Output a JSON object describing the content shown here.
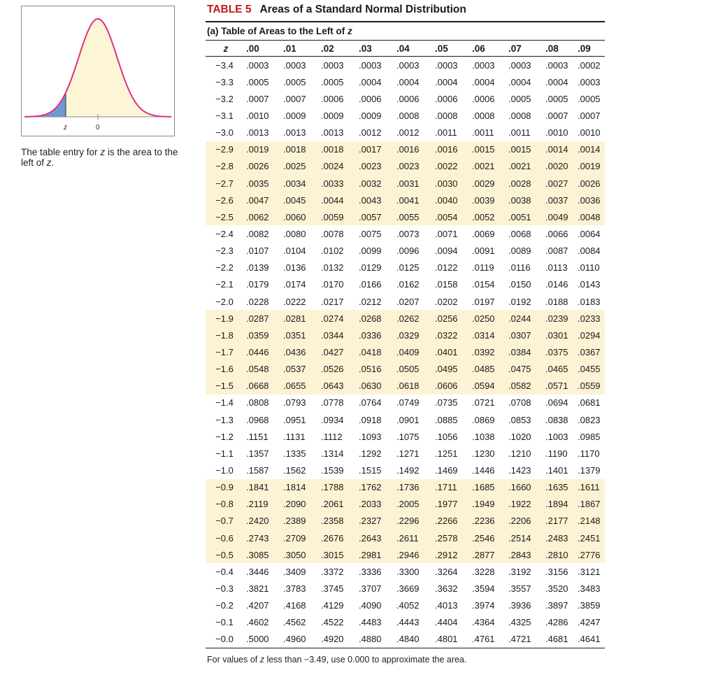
{
  "figure": {
    "z_label": "z",
    "zero_label": "0",
    "fill_color": "#6f9bd3",
    "curve_color": "#e0307a",
    "area_color": "#fcf6d6"
  },
  "caption": {
    "prefix": "The table entry for ",
    "z1": "z",
    "mid": " is the area to the left of ",
    "z2": "z",
    "suffix": "."
  },
  "title": {
    "number": "TABLE 5",
    "name": "Areas of a Standard Normal Distribution"
  },
  "subtitle": {
    "text": "(a) Table of Areas to the Left of ",
    "z": "z"
  },
  "table": {
    "z_header": "z",
    "columns": [
      ".00",
      ".01",
      ".02",
      ".03",
      ".04",
      ".05",
      ".06",
      ".07",
      ".08",
      ".09"
    ],
    "rows": [
      {
        "z": "−3.4",
        "v": [
          ".0003",
          ".0003",
          ".0003",
          ".0003",
          ".0003",
          ".0003",
          ".0003",
          ".0003",
          ".0003",
          ".0002"
        ]
      },
      {
        "z": "−3.3",
        "v": [
          ".0005",
          ".0005",
          ".0005",
          ".0004",
          ".0004",
          ".0004",
          ".0004",
          ".0004",
          ".0004",
          ".0003"
        ]
      },
      {
        "z": "−3.2",
        "v": [
          ".0007",
          ".0007",
          ".0006",
          ".0006",
          ".0006",
          ".0006",
          ".0006",
          ".0005",
          ".0005",
          ".0005"
        ]
      },
      {
        "z": "−3.1",
        "v": [
          ".0010",
          ".0009",
          ".0009",
          ".0009",
          ".0008",
          ".0008",
          ".0008",
          ".0008",
          ".0007",
          ".0007"
        ]
      },
      {
        "z": "−3.0",
        "v": [
          ".0013",
          ".0013",
          ".0013",
          ".0012",
          ".0012",
          ".0011",
          ".0011",
          ".0011",
          ".0010",
          ".0010"
        ]
      },
      {
        "z": "−2.9",
        "v": [
          ".0019",
          ".0018",
          ".0018",
          ".0017",
          ".0016",
          ".0016",
          ".0015",
          ".0015",
          ".0014",
          ".0014"
        ]
      },
      {
        "z": "−2.8",
        "v": [
          ".0026",
          ".0025",
          ".0024",
          ".0023",
          ".0023",
          ".0022",
          ".0021",
          ".0021",
          ".0020",
          ".0019"
        ]
      },
      {
        "z": "−2.7",
        "v": [
          ".0035",
          ".0034",
          ".0033",
          ".0032",
          ".0031",
          ".0030",
          ".0029",
          ".0028",
          ".0027",
          ".0026"
        ]
      },
      {
        "z": "−2.6",
        "v": [
          ".0047",
          ".0045",
          ".0044",
          ".0043",
          ".0041",
          ".0040",
          ".0039",
          ".0038",
          ".0037",
          ".0036"
        ]
      },
      {
        "z": "−2.5",
        "v": [
          ".0062",
          ".0060",
          ".0059",
          ".0057",
          ".0055",
          ".0054",
          ".0052",
          ".0051",
          ".0049",
          ".0048"
        ]
      },
      {
        "z": "−2.4",
        "v": [
          ".0082",
          ".0080",
          ".0078",
          ".0075",
          ".0073",
          ".0071",
          ".0069",
          ".0068",
          ".0066",
          ".0064"
        ]
      },
      {
        "z": "−2.3",
        "v": [
          ".0107",
          ".0104",
          ".0102",
          ".0099",
          ".0096",
          ".0094",
          ".0091",
          ".0089",
          ".0087",
          ".0084"
        ]
      },
      {
        "z": "−2.2",
        "v": [
          ".0139",
          ".0136",
          ".0132",
          ".0129",
          ".0125",
          ".0122",
          ".0119",
          ".0116",
          ".0113",
          ".0110"
        ]
      },
      {
        "z": "−2.1",
        "v": [
          ".0179",
          ".0174",
          ".0170",
          ".0166",
          ".0162",
          ".0158",
          ".0154",
          ".0150",
          ".0146",
          ".0143"
        ]
      },
      {
        "z": "−2.0",
        "v": [
          ".0228",
          ".0222",
          ".0217",
          ".0212",
          ".0207",
          ".0202",
          ".0197",
          ".0192",
          ".0188",
          ".0183"
        ]
      },
      {
        "z": "−1.9",
        "v": [
          ".0287",
          ".0281",
          ".0274",
          ".0268",
          ".0262",
          ".0256",
          ".0250",
          ".0244",
          ".0239",
          ".0233"
        ]
      },
      {
        "z": "−1.8",
        "v": [
          ".0359",
          ".0351",
          ".0344",
          ".0336",
          ".0329",
          ".0322",
          ".0314",
          ".0307",
          ".0301",
          ".0294"
        ]
      },
      {
        "z": "−1.7",
        "v": [
          ".0446",
          ".0436",
          ".0427",
          ".0418",
          ".0409",
          ".0401",
          ".0392",
          ".0384",
          ".0375",
          ".0367"
        ]
      },
      {
        "z": "−1.6",
        "v": [
          ".0548",
          ".0537",
          ".0526",
          ".0516",
          ".0505",
          ".0495",
          ".0485",
          ".0475",
          ".0465",
          ".0455"
        ]
      },
      {
        "z": "−1.5",
        "v": [
          ".0668",
          ".0655",
          ".0643",
          ".0630",
          ".0618",
          ".0606",
          ".0594",
          ".0582",
          ".0571",
          ".0559"
        ]
      },
      {
        "z": "−1.4",
        "v": [
          ".0808",
          ".0793",
          ".0778",
          ".0764",
          ".0749",
          ".0735",
          ".0721",
          ".0708",
          ".0694",
          ".0681"
        ]
      },
      {
        "z": "−1.3",
        "v": [
          ".0968",
          ".0951",
          ".0934",
          ".0918",
          ".0901",
          ".0885",
          ".0869",
          ".0853",
          ".0838",
          ".0823"
        ]
      },
      {
        "z": "−1.2",
        "v": [
          ".1151",
          ".1131",
          ".1112",
          ".1093",
          ".1075",
          ".1056",
          ".1038",
          ".1020",
          ".1003",
          ".0985"
        ]
      },
      {
        "z": "−1.1",
        "v": [
          ".1357",
          ".1335",
          ".1314",
          ".1292",
          ".1271",
          ".1251",
          ".1230",
          ".1210",
          ".1190",
          ".1170"
        ]
      },
      {
        "z": "−1.0",
        "v": [
          ".1587",
          ".1562",
          ".1539",
          ".1515",
          ".1492",
          ".1469",
          ".1446",
          ".1423",
          ".1401",
          ".1379"
        ]
      },
      {
        "z": "−0.9",
        "v": [
          ".1841",
          ".1814",
          ".1788",
          ".1762",
          ".1736",
          ".1711",
          ".1685",
          ".1660",
          ".1635",
          ".1611"
        ]
      },
      {
        "z": "−0.8",
        "v": [
          ".2119",
          ".2090",
          ".2061",
          ".2033",
          ".2005",
          ".1977",
          ".1949",
          ".1922",
          ".1894",
          ".1867"
        ]
      },
      {
        "z": "−0.7",
        "v": [
          ".2420",
          ".2389",
          ".2358",
          ".2327",
          ".2296",
          ".2266",
          ".2236",
          ".2206",
          ".2177",
          ".2148"
        ]
      },
      {
        "z": "−0.6",
        "v": [
          ".2743",
          ".2709",
          ".2676",
          ".2643",
          ".2611",
          ".2578",
          ".2546",
          ".2514",
          ".2483",
          ".2451"
        ]
      },
      {
        "z": "−0.5",
        "v": [
          ".3085",
          ".3050",
          ".3015",
          ".2981",
          ".2946",
          ".2912",
          ".2877",
          ".2843",
          ".2810",
          ".2776"
        ]
      },
      {
        "z": "−0.4",
        "v": [
          ".3446",
          ".3409",
          ".3372",
          ".3336",
          ".3300",
          ".3264",
          ".3228",
          ".3192",
          ".3156",
          ".3121"
        ]
      },
      {
        "z": "−0.3",
        "v": [
          ".3821",
          ".3783",
          ".3745",
          ".3707",
          ".3669",
          ".3632",
          ".3594",
          ".3557",
          ".3520",
          ".3483"
        ]
      },
      {
        "z": "−0.2",
        "v": [
          ".4207",
          ".4168",
          ".4129",
          ".4090",
          ".4052",
          ".4013",
          ".3974",
          ".3936",
          ".3897",
          ".3859"
        ]
      },
      {
        "z": "−0.1",
        "v": [
          ".4602",
          ".4562",
          ".4522",
          ".4483",
          ".4443",
          ".4404",
          ".4364",
          ".4325",
          ".4286",
          ".4247"
        ]
      },
      {
        "z": "−0.0",
        "v": [
          ".5000",
          ".4960",
          ".4920",
          ".4880",
          ".4840",
          ".4801",
          ".4761",
          ".4721",
          ".4681",
          ".4641"
        ]
      }
    ],
    "shade_color": "#fcf3d4"
  },
  "footnote": {
    "prefix": "For values of ",
    "z": "z",
    "suffix": " less than −3.49, use 0.000 to approximate the area."
  }
}
